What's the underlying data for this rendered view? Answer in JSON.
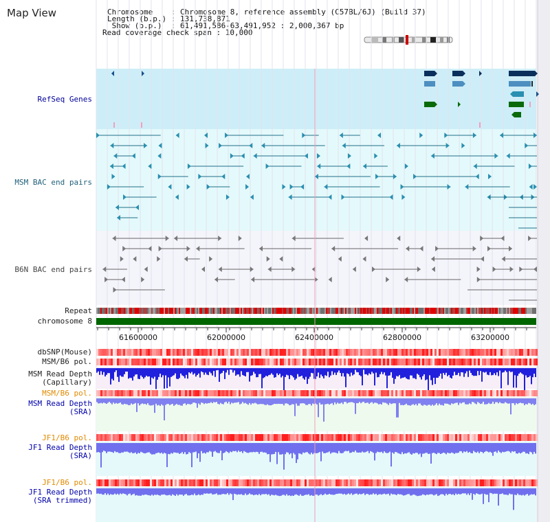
{
  "page": {
    "title": "Map View"
  },
  "header": {
    "chromosome_label": "Chromosome    : Chromosome 8, reference assembly (C57BL/6J) (Build 37)",
    "length_label": "Length (b.p.) : 131,738,871",
    "show_label": " Show (b.p.)  : 61,491,586-63,491,952 : 2,000,367 bp",
    "coverage_label": "Read coverage check span : 10,000"
  },
  "tracks": {
    "refseq": {
      "label": "RefSeq Genes",
      "color": "#000099"
    },
    "msm_bac": {
      "label": "MSM BAC end pairs",
      "color": "#1f5f7a"
    },
    "b6n_bac": {
      "label": "B6N BAC end pairs",
      "color": "#444444"
    },
    "repeat": {
      "label": "Repeat"
    },
    "chromosome": {
      "label": "chromosome 8"
    },
    "dbsnp": {
      "label": "dbSNP(Mouse)"
    },
    "msm_b6_pol_1": {
      "label": "MSM/B6 pol."
    },
    "msm_depth_cap": {
      "label": "MSM Read Depth\n(Capillary)"
    },
    "msm_b6_pol_2": {
      "label": "MSM/B6 pol."
    },
    "msm_depth_sra": {
      "label": "MSM Read Depth\n(SRA)"
    },
    "jf1_b6_pol_1": {
      "label": "JF1/B6 pol."
    },
    "jf1_depth_sra": {
      "label": "JF1 Read Depth\n(SRA)"
    },
    "jf1_b6_pol_2": {
      "label": "JF1/B6 pol."
    },
    "jf1_depth_trim": {
      "label": "JF1 Read Depth\n(SRA trimmed)"
    }
  },
  "axis": {
    "ticks": [
      "61600000",
      "62000000",
      "62400000",
      "62800000",
      "63200000"
    ]
  },
  "colors": {
    "label_black": "#222222",
    "label_orange": "#e08a00",
    "label_blue": "#0000aa",
    "refseq_bg": "#cdeef8",
    "msm_bg": "#e4f9fb",
    "b6n_bg": "#f4f4fb",
    "chromosome": "#006600"
  }
}
